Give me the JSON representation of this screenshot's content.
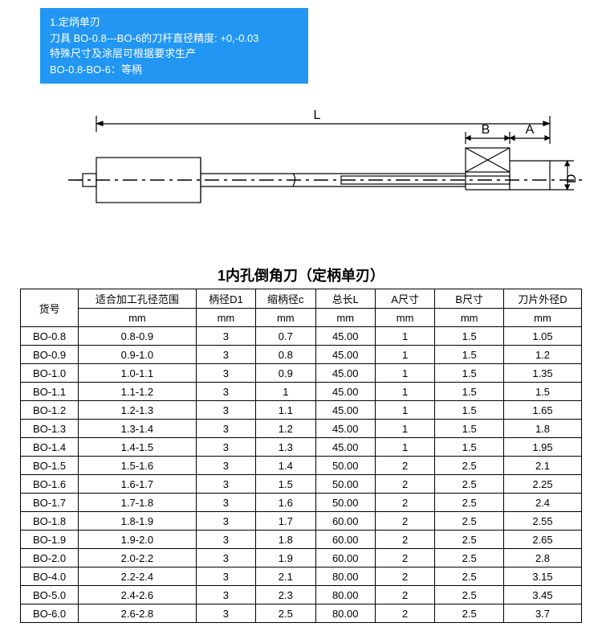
{
  "info_box": {
    "line1": "1.定炳单刃",
    "line2": "刀具 BO-0.8---BO-6的刀杆直径精度: +0,-0.03",
    "line3": "特殊尺寸及涂层可根据要求生产",
    "line4": "BO-0.8-BO-6：等柄",
    "bg": "#2196f3",
    "fg": "#ffffff"
  },
  "diagram": {
    "label_L": "L",
    "label_B": "B",
    "label_A": "A",
    "label_D": "D",
    "stroke": "#000000",
    "stroke_w": 1.2
  },
  "table": {
    "title": "1内孔倒角刀（定柄单刃）",
    "headers": {
      "code": "货号",
      "range": "适合加工孔径范围",
      "d1": "柄径D1",
      "c": "缩柄径c",
      "l": "总长L",
      "a": "A尺寸",
      "b": "B尺寸",
      "d": "刀片外径D"
    },
    "unit": "mm",
    "rows": [
      {
        "code": "BO-0.8",
        "range": "0.8-0.9",
        "d1": "3",
        "c": "0.7",
        "l": "45.00",
        "a": "1",
        "b": "1.5",
        "d": "1.05"
      },
      {
        "code": "BO-0.9",
        "range": "0.9-1.0",
        "d1": "3",
        "c": "0.8",
        "l": "45.00",
        "a": "1",
        "b": "1.5",
        "d": "1.2"
      },
      {
        "code": "BO-1.0",
        "range": "1.0-1.1",
        "d1": "3",
        "c": "0.9",
        "l": "45.00",
        "a": "1",
        "b": "1.5",
        "d": "1.35"
      },
      {
        "code": "BO-1.1",
        "range": "1.1-1.2",
        "d1": "3",
        "c": "1",
        "l": "45.00",
        "a": "1",
        "b": "1.5",
        "d": "1.5"
      },
      {
        "code": "BO-1.2",
        "range": "1.2-1.3",
        "d1": "3",
        "c": "1.1",
        "l": "45.00",
        "a": "1",
        "b": "1.5",
        "d": "1.65"
      },
      {
        "code": "BO-1.3",
        "range": "1.3-1.4",
        "d1": "3",
        "c": "1.2",
        "l": "45.00",
        "a": "1",
        "b": "1.5",
        "d": "1.8"
      },
      {
        "code": "BO-1.4",
        "range": "1.4-1.5",
        "d1": "3",
        "c": "1.3",
        "l": "45.00",
        "a": "1",
        "b": "1.5",
        "d": "1.95"
      },
      {
        "code": "BO-1.5",
        "range": "1.5-1.6",
        "d1": "3",
        "c": "1.4",
        "l": "50.00",
        "a": "2",
        "b": "2.5",
        "d": "2.1"
      },
      {
        "code": "BO-1.6",
        "range": "1.6-1.7",
        "d1": "3",
        "c": "1.5",
        "l": "50.00",
        "a": "2",
        "b": "2.5",
        "d": "2.25"
      },
      {
        "code": "BO-1.7",
        "range": "1.7-1.8",
        "d1": "3",
        "c": "1.6",
        "l": "50.00",
        "a": "2",
        "b": "2.5",
        "d": "2.4"
      },
      {
        "code": "BO-1.8",
        "range": "1.8-1.9",
        "d1": "3",
        "c": "1.7",
        "l": "60.00",
        "a": "2",
        "b": "2.5",
        "d": "2.55"
      },
      {
        "code": "BO-1.9",
        "range": "1.9-2.0",
        "d1": "3",
        "c": "1.8",
        "l": "60.00",
        "a": "2",
        "b": "2.5",
        "d": "2.65"
      },
      {
        "code": "BO-2.0",
        "range": "2.0-2.2",
        "d1": "3",
        "c": "1.9",
        "l": "60.00",
        "a": "2",
        "b": "2.5",
        "d": "2.8"
      },
      {
        "code": "BO-4.0",
        "range": "2.2-2.4",
        "d1": "3",
        "c": "2.1",
        "l": "80.00",
        "a": "2",
        "b": "2.5",
        "d": "3.15"
      },
      {
        "code": "BO-5.0",
        "range": "2.4-2.6",
        "d1": "3",
        "c": "2.3",
        "l": "80.00",
        "a": "2",
        "b": "2.5",
        "d": "3.45"
      },
      {
        "code": "BO-6.0",
        "range": "2.6-2.8",
        "d1": "3",
        "c": "2.5",
        "l": "80.00",
        "a": "2",
        "b": "2.5",
        "d": "3.7"
      }
    ]
  }
}
